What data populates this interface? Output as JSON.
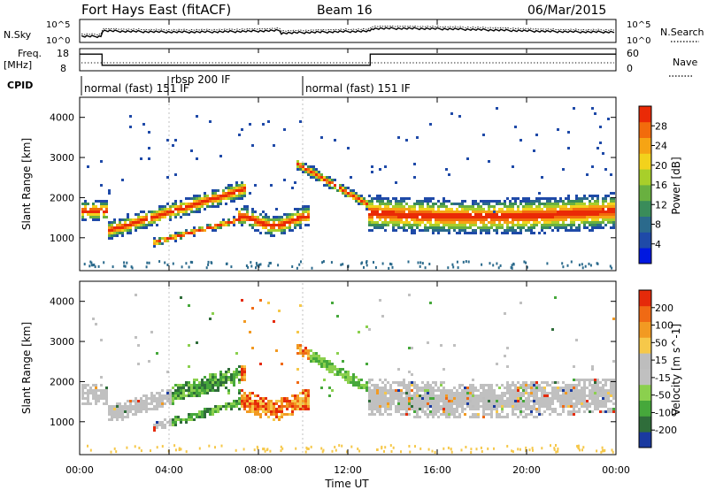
{
  "header": {
    "title": "Fort Hays East (fitACF)",
    "beam": "Beam 16",
    "date": "06/Mar/2015"
  },
  "status_panels": {
    "nsky_label": "N.Sky",
    "nsearch_label": "N.Search",
    "nsky_ticks": [
      "10^5",
      "10^0"
    ],
    "nsearch_ticks": [
      "10^5",
      "10^0"
    ],
    "freq_label_1": "Freq.",
    "freq_label_2": "[MHz]",
    "freq_ticks": [
      "18",
      "8"
    ],
    "nave_label": "Nave",
    "nave_ticks": [
      "60",
      "0"
    ],
    "cpid_label": "CPID",
    "cpid_segments": [
      {
        "label": "normal (fast) 151 IF",
        "start_hour": 0
      },
      {
        "label": "rbsp 200 IF",
        "start_hour": 4
      },
      {
        "label": "normal (fast) 151 IF",
        "start_hour": 10
      }
    ]
  },
  "chart_data": {
    "type": "heatmap",
    "x_range_hours": [
      0,
      24
    ],
    "x_ticks": [
      "00:00",
      "04:00",
      "08:00",
      "12:00",
      "16:00",
      "20:00",
      "00:00"
    ],
    "xlabel": "Time UT",
    "ylabel": "Slant Range [km]",
    "y_range_km": [
      180,
      4500
    ],
    "y_ticks": [
      "1000",
      "2000",
      "3000",
      "4000"
    ],
    "frequency_trace_mhz": [
      {
        "from_hour": 0,
        "to_hour": 1,
        "value": 16
      },
      {
        "from_hour": 1,
        "to_hour": 13,
        "value": 10
      },
      {
        "from_hour": 13,
        "to_hour": 24,
        "value": 16
      }
    ],
    "panels": [
      {
        "parameter": "Power",
        "colorbar_label": "Power [dB]",
        "colorbar_ticks": [
          "28",
          "24",
          "20",
          "16",
          "12",
          "8",
          "4"
        ],
        "colors": [
          "#0018e0",
          "#1f4aa8",
          "#2b6a8c",
          "#3a8c5a",
          "#69b040",
          "#a8cf2a",
          "#f2d21c",
          "#f6a414",
          "#f26b0c",
          "#ea2a06"
        ]
      },
      {
        "parameter": "Velocity",
        "colorbar_label": "Velocity [m s^-1]",
        "colorbar_ticks": [
          "200",
          "100",
          "50",
          "15",
          "-15",
          "-50",
          "-100",
          "-200"
        ],
        "colors": [
          "#1a3aa0",
          "#2f6d3a",
          "#46a83b",
          "#8bd04e",
          "#c0c0c0",
          "#bdbdbd",
          "#f6c84a",
          "#f29a22",
          "#f06a14",
          "#e52a0a"
        ]
      }
    ]
  }
}
